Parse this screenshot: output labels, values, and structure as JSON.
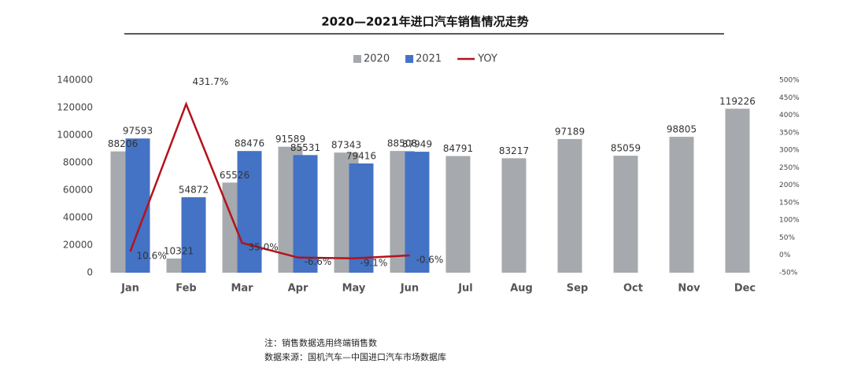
{
  "chart_data": {
    "type": "bar",
    "title": "2020—2021年进口汽车销售情况走势",
    "categories": [
      "Jan",
      "Feb",
      "Mar",
      "Apr",
      "May",
      "Jun",
      "Jul",
      "Aug",
      "Sep",
      "Oct",
      "Nov",
      "Dec"
    ],
    "series": [
      {
        "name": "2020",
        "color": "#a6a9ad",
        "type": "bar",
        "axis": "y",
        "values": [
          88206,
          10321,
          65526,
          91589,
          87343,
          88508,
          84791,
          83217,
          97189,
          85059,
          98805,
          119226
        ]
      },
      {
        "name": "2021",
        "color": "#4472c4",
        "type": "bar",
        "axis": "y",
        "values": [
          97593,
          54872,
          88476,
          85531,
          79416,
          87949,
          null,
          null,
          null,
          null,
          null,
          null
        ]
      },
      {
        "name": "YOY",
        "color": "#b5121b",
        "type": "line",
        "axis": "y2",
        "values": [
          10.6,
          431.7,
          35.0,
          -6.6,
          -9.1,
          -0.6,
          null,
          null,
          null,
          null,
          null,
          null
        ],
        "value_labels": [
          "10.6%",
          "431.7%",
          "35.0%",
          "-6.6%",
          "-9.1%",
          "-0.6%",
          null,
          null,
          null,
          null,
          null,
          null
        ]
      }
    ],
    "ylim": [
      0,
      140000
    ],
    "yticks": [
      0,
      20000,
      40000,
      60000,
      80000,
      100000,
      120000,
      140000
    ],
    "y2lim": [
      -50,
      500
    ],
    "y2ticks": [
      {
        "value": -50,
        "label": "-50%"
      },
      {
        "value": 0,
        "label": "0%"
      },
      {
        "value": 50,
        "label": "50%"
      },
      {
        "value": 100,
        "label": "100%"
      },
      {
        "value": 150,
        "label": "150%"
      },
      {
        "value": 200,
        "label": "200%"
      },
      {
        "value": 250,
        "label": "250%"
      },
      {
        "value": 300,
        "label": "300%"
      },
      {
        "value": 350,
        "label": "350%"
      },
      {
        "value": 400,
        "label": "400%"
      },
      {
        "value": 450,
        "label": "450%"
      },
      {
        "value": 500,
        "label": "500%"
      }
    ],
    "legend": "top",
    "notes": [
      "注：销售数据选用终端销售数",
      "数据来源：国机汽车—中国进口汽车市场数据库"
    ]
  }
}
